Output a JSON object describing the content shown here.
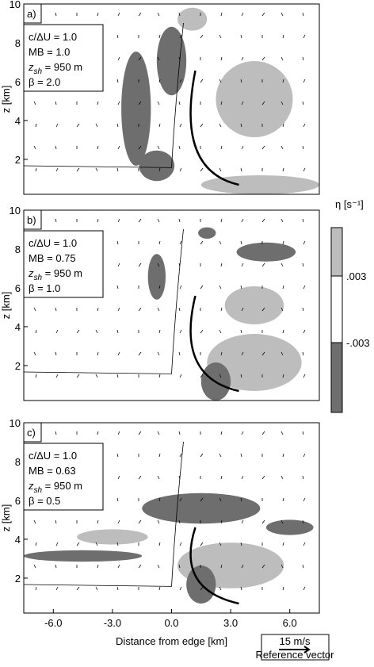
{
  "chart_data": [
    {
      "type": "contour",
      "panel_label": "a)",
      "ylabel": "z [km]",
      "xlim": [
        -7.5,
        7.5
      ],
      "ylim": [
        0.2,
        10
      ],
      "yticks": [
        2,
        4,
        6,
        8,
        10
      ],
      "annotations": [
        "c/ΔU = 1.0",
        "MB = 1.0",
        {
          "main": "z",
          "sub": "sh",
          "after": " = 950 m"
        },
        "β = 2.0"
      ]
    },
    {
      "type": "contour",
      "panel_label": "b)",
      "ylabel": "z [km]",
      "xlim": [
        -7.5,
        7.5
      ],
      "ylim": [
        0.2,
        10
      ],
      "yticks": [
        2,
        4,
        6,
        8,
        10
      ],
      "annotations": [
        "c/ΔU = 1.0",
        "MB = 0.75",
        {
          "main": "z",
          "sub": "sh",
          "after": " = 950 m"
        },
        "β = 1.0"
      ]
    },
    {
      "type": "contour",
      "panel_label": "c)",
      "ylabel": "z [km]",
      "xlabel": "Distance from edge [km]",
      "xlim": [
        -7.5,
        7.5
      ],
      "ylim": [
        0.2,
        10
      ],
      "yticks": [
        2,
        4,
        6,
        8,
        10
      ],
      "xticks": [
        {
          "value": -6,
          "label": "-6.0"
        },
        {
          "value": -3,
          "label": "-3.0"
        },
        {
          "value": 0,
          "label": "0.0"
        },
        {
          "value": 3,
          "label": "3.0"
        },
        {
          "value": 6,
          "label": "6.0"
        }
      ],
      "annotations": [
        "c/ΔU = 1.0",
        "MB = 0.63",
        {
          "main": "z",
          "sub": "sh",
          "after": " = 950 m"
        },
        "β = 0.5"
      ]
    }
  ],
  "colorbar": {
    "label": "η [s⁻¹]",
    "ticks": [
      {
        "value": 0.003,
        "label": ".003"
      },
      {
        "value": -0.003,
        "label": "-.003"
      }
    ]
  },
  "reference_vector": {
    "speed": "15 m/s",
    "label": "Reference vector"
  }
}
